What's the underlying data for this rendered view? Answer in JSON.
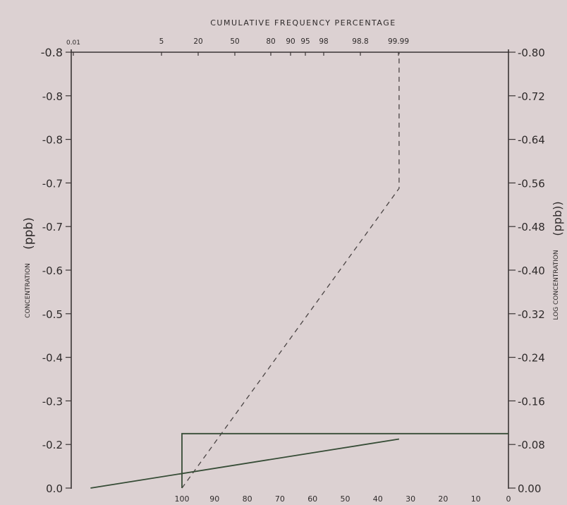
{
  "colors": {
    "background": "#dcd1d2",
    "axis": "#3a3434",
    "text": "#2e2a2a",
    "dashed_series": "#4a4444",
    "solid_series": "#364c36"
  },
  "chart_data": {
    "type": "line",
    "title": "CUMULATIVE FREQUENCY PERCENTAGE",
    "left_ylabel": "CONCENTRATION",
    "left_ylabel_unit": "(ppb)",
    "right_ylabel": "LOG CONCENTRATION",
    "right_ylabel_unit": "(ppb))",
    "top_ticks": [
      "0.01",
      "5",
      "20",
      "50",
      "80",
      "90",
      "95",
      "98",
      "98.8",
      "99.99"
    ],
    "bottom_ticks": [
      "100",
      "90",
      "80",
      "70",
      "60",
      "50",
      "40",
      "30",
      "20",
      "10",
      "0"
    ],
    "left_ticks": [
      "0.0",
      "-0.2",
      "-0.3",
      "-0.4",
      "-0.5",
      "-0.6",
      "-0.7",
      "-0.7",
      "-0.8",
      "-0.8",
      "-0.8"
    ],
    "right_ticks": [
      "0.00",
      "-0.08",
      "-0.16",
      "-0.24",
      "-0.32",
      "-0.40",
      "-0.48",
      "-0.56",
      "-0.64",
      "-0.72",
      "-0.80"
    ],
    "grid": false,
    "legend": "none",
    "series": [
      {
        "style": "dashed",
        "x": [
          100,
          33.5,
          33.5
        ],
        "y": [
          0.0,
          -0.55,
          -0.8
        ]
      },
      {
        "style": "solid",
        "x": [
          100,
          100,
          0
        ],
        "y": [
          0.0,
          -0.1,
          -0.1
        ]
      },
      {
        "style": "solid",
        "x": [
          128,
          33.5
        ],
        "y": [
          0.0,
          -0.09
        ]
      }
    ]
  }
}
